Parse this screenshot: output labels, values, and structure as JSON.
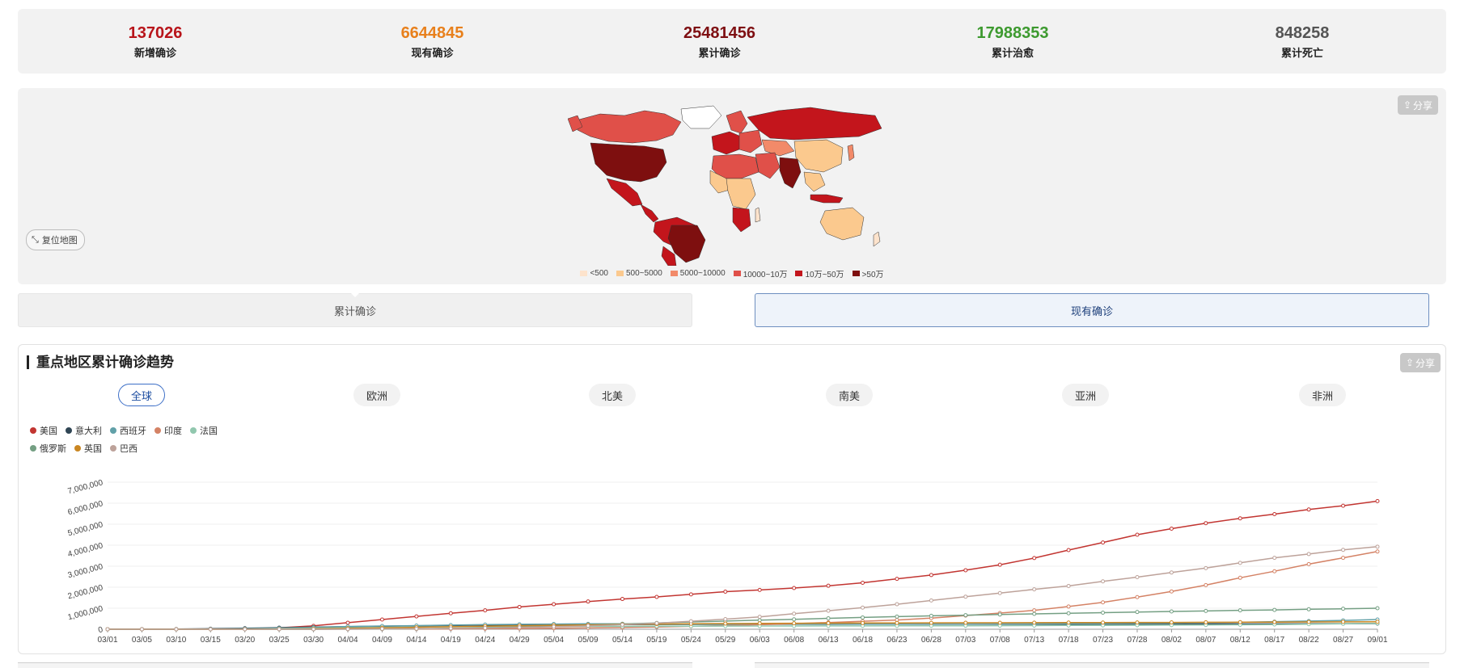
{
  "stats": [
    {
      "value": "137026",
      "label": "新增确诊",
      "color": "#b8141a"
    },
    {
      "value": "6644845",
      "label": "现有确诊",
      "color": "#e8801c"
    },
    {
      "value": "25481456",
      "label": "累计确诊",
      "color": "#7e0f12"
    },
    {
      "value": "17988353",
      "label": "累计治愈",
      "color": "#3d9a2f"
    },
    {
      "value": "848258",
      "label": "累计死亡",
      "color": "#555555"
    }
  ],
  "map": {
    "share_label": "分享",
    "reset_label": "复位地图",
    "legend": [
      {
        "label": "<500",
        "color": "#fde3cc"
      },
      {
        "label": "500~5000",
        "color": "#fbc98e"
      },
      {
        "label": "5000~10000",
        "color": "#f28a69"
      },
      {
        "label": "10000~10万",
        "color": "#e05049"
      },
      {
        "label": "10万~50万",
        "color": "#c3151c"
      },
      {
        "label": ">50万",
        "color": "#7e0f0f"
      }
    ]
  },
  "tabs": {
    "cumulative": "累计确诊",
    "current": "现有确诊"
  },
  "trend": {
    "title": "重点地区累计确诊趋势",
    "share_label": "分享",
    "regions": [
      "全球",
      "欧洲",
      "北美",
      "南美",
      "亚洲",
      "非洲"
    ],
    "active_region": "全球"
  },
  "chart_data": {
    "type": "line",
    "title": "重点地区累计确诊趋势",
    "xlabel": "",
    "ylabel": "",
    "ylim": [
      0,
      7000000
    ],
    "y_ticks": [
      "0",
      "1,000,000",
      "2,000,000",
      "3,000,000",
      "4,000,000",
      "5,000,000",
      "6,000,000",
      "7,000,000"
    ],
    "x": [
      "03/01",
      "03/05",
      "03/10",
      "03/15",
      "03/20",
      "03/25",
      "03/30",
      "04/04",
      "04/09",
      "04/14",
      "04/19",
      "04/24",
      "04/29",
      "05/04",
      "05/09",
      "05/14",
      "05/19",
      "05/24",
      "05/29",
      "06/03",
      "06/08",
      "06/13",
      "06/18",
      "06/23",
      "06/28",
      "07/03",
      "07/08",
      "07/13",
      "07/18",
      "07/23",
      "07/28",
      "08/02",
      "08/07",
      "08/12",
      "08/17",
      "08/22",
      "08/27",
      "09/01"
    ],
    "grid": true,
    "legend_position": "top-left",
    "series": [
      {
        "name": "美国",
        "color": "#c23531",
        "values": [
          0,
          200,
          1000,
          3500,
          19000,
          66000,
          160000,
          310000,
          460000,
          610000,
          760000,
          900000,
          1060000,
          1190000,
          1320000,
          1440000,
          1540000,
          1660000,
          1790000,
          1870000,
          1960000,
          2070000,
          2210000,
          2400000,
          2580000,
          2810000,
          3070000,
          3390000,
          3770000,
          4130000,
          4500000,
          4790000,
          5050000,
          5280000,
          5480000,
          5700000,
          5880000,
          6100000
        ]
      },
      {
        "name": "意大利",
        "color": "#2f4554",
        "values": [
          1700,
          3800,
          10000,
          25000,
          47000,
          74000,
          101000,
          124000,
          143000,
          162000,
          178000,
          195000,
          204000,
          211000,
          218000,
          222000,
          226000,
          229000,
          232000,
          234000,
          235000,
          236000,
          238000,
          239000,
          240000,
          241000,
          242000,
          243000,
          244000,
          246000,
          247000,
          248000,
          250000,
          252000,
          254000,
          258000,
          264000,
          270000
        ]
      },
      {
        "name": "西班牙",
        "color": "#61a0a8",
        "values": [
          100,
          300,
          1700,
          8000,
          25000,
          50000,
          87000,
          130000,
          153000,
          172000,
          195000,
          219000,
          236000,
          248000,
          256000,
          262000,
          232000,
          235000,
          238000,
          240000,
          242000,
          245000,
          246000,
          248000,
          249000,
          250000,
          253000,
          258000,
          264000,
          270000,
          280000,
          290000,
          310000,
          330000,
          360000,
          390000,
          420000,
          460000
        ]
      },
      {
        "name": "印度",
        "color": "#d48265",
        "values": [
          0,
          0,
          50,
          100,
          200,
          700,
          1300,
          3000,
          6000,
          11000,
          17000,
          25000,
          33000,
          46000,
          62000,
          80000,
          106000,
          138000,
          174000,
          216000,
          266000,
          320000,
          380000,
          440000,
          530000,
          650000,
          770000,
          900000,
          1080000,
          1280000,
          1530000,
          1800000,
          2100000,
          2450000,
          2760000,
          3100000,
          3400000,
          3700000
        ]
      },
      {
        "name": "法国",
        "color": "#91c7ae",
        "values": [
          100,
          300,
          1800,
          5000,
          12000,
          25000,
          44000,
          68000,
          86000,
          103000,
          115000,
          124000,
          129000,
          132000,
          138000,
          140000,
          142000,
          145000,
          149000,
          152000,
          155000,
          157000,
          159000,
          161000,
          163000,
          166000,
          170000,
          173000,
          180000,
          185000,
          190000,
          195000,
          203000,
          213000,
          225000,
          240000,
          258000,
          280000
        ]
      },
      {
        "name": "俄罗斯",
        "color": "#749f83",
        "values": [
          0,
          0,
          20,
          60,
          250,
          650,
          1800,
          4700,
          10000,
          21000,
          42000,
          68000,
          99000,
          145000,
          198000,
          250000,
          300000,
          345000,
          387000,
          430000,
          470000,
          520000,
          560000,
          600000,
          640000,
          670000,
          700000,
          730000,
          760000,
          790000,
          820000,
          845000,
          870000,
          900000,
          920000,
          950000,
          975000,
          1000000
        ]
      },
      {
        "name": "英国",
        "color": "#ca8622",
        "values": [
          30,
          100,
          400,
          1400,
          4000,
          9500,
          23000,
          42000,
          66000,
          93000,
          120000,
          144000,
          166000,
          187000,
          209000,
          230000,
          245000,
          260000,
          270000,
          279000,
          285000,
          290000,
          295000,
          300000,
          303000,
          306000,
          309000,
          312000,
          315000,
          318000,
          322000,
          325000,
          330000,
          335000,
          340000,
          345000,
          350000,
          356000
        ]
      },
      {
        "name": "巴西",
        "color": "#bda29a",
        "values": [
          0,
          5,
          30,
          150,
          900,
          3000,
          5700,
          11000,
          18000,
          26000,
          39000,
          59000,
          85000,
          118000,
          162000,
          214000,
          290000,
          380000,
          480000,
          590000,
          740000,
          880000,
          1030000,
          1190000,
          1370000,
          1550000,
          1720000,
          1900000,
          2060000,
          2280000,
          2480000,
          2700000,
          2910000,
          3160000,
          3400000,
          3580000,
          3780000,
          3930000
        ]
      }
    ]
  }
}
